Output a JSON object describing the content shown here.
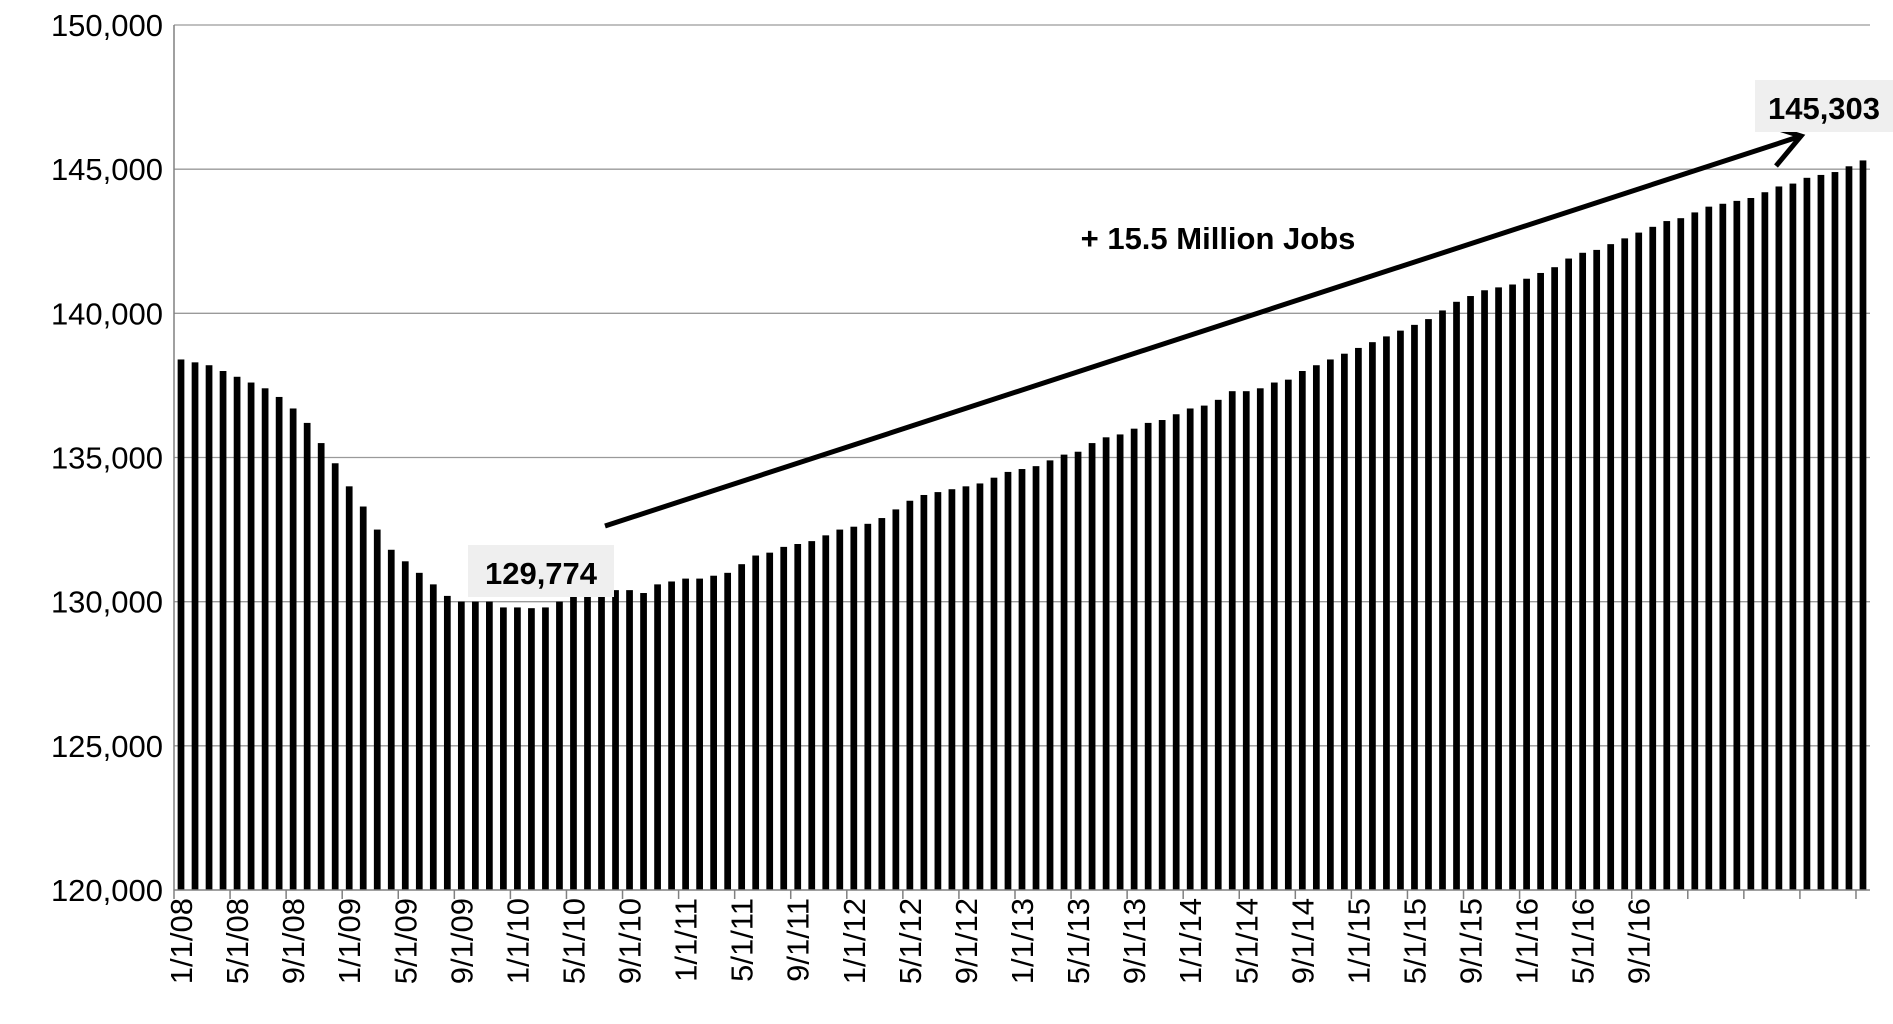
{
  "chart_data": {
    "type": "bar",
    "title": "",
    "xlabel": "",
    "ylabel": "",
    "ylim": [
      120000,
      150000
    ],
    "yticks": [
      "120,000",
      "125,000",
      "130,000",
      "135,000",
      "140,000",
      "145,000",
      "150,000"
    ],
    "xtick_labels": [
      "1/1/08",
      "5/1/08",
      "9/1/08",
      "1/1/09",
      "5/1/09",
      "9/1/09",
      "1/1/10",
      "5/1/10",
      "9/1/10",
      "1/1/11",
      "5/1/11",
      "9/1/11",
      "1/1/12",
      "5/1/12",
      "9/1/12",
      "1/1/13",
      "5/1/13",
      "9/1/13",
      "1/1/14",
      "5/1/14",
      "9/1/14",
      "1/1/15",
      "5/1/15",
      "9/1/15",
      "1/1/16",
      "5/1/16",
      "9/1/16"
    ],
    "grid": true,
    "legend": "none",
    "bar_color": "#000000",
    "values": [
      138400,
      138300,
      138200,
      138000,
      137800,
      137600,
      137400,
      137100,
      136700,
      136200,
      135500,
      134800,
      134000,
      133300,
      132500,
      131800,
      131400,
      131000,
      130600,
      130200,
      130000,
      130000,
      130000,
      129800,
      129800,
      129774,
      129800,
      130000,
      130200,
      130600,
      130500,
      130400,
      130400,
      130300,
      130600,
      130700,
      130800,
      130800,
      130900,
      131000,
      131300,
      131600,
      131700,
      131900,
      132000,
      132100,
      132300,
      132500,
      132600,
      132700,
      132900,
      133200,
      133500,
      133700,
      133800,
      133900,
      134000,
      134100,
      134300,
      134500,
      134600,
      134700,
      134900,
      135100,
      135200,
      135500,
      135700,
      135800,
      136000,
      136200,
      136300,
      136500,
      136700,
      136800,
      137000,
      137300,
      137300,
      137400,
      137600,
      137700,
      138000,
      138200,
      138400,
      138600,
      138800,
      139000,
      139200,
      139400,
      139600,
      139800,
      140100,
      140400,
      140600,
      140800,
      140900,
      141000,
      141200,
      141400,
      141600,
      141900,
      142100,
      142200,
      142400,
      142600,
      142800,
      143000,
      143200,
      143300,
      143500,
      143700,
      143800,
      143900,
      144000,
      144200,
      144400,
      144500,
      144700,
      144800,
      144900,
      145100,
      145303
    ],
    "annotations": {
      "min_value_label": "129,774",
      "max_value_label": "145,303",
      "change_label": "+ 15.5 Million Jobs"
    }
  }
}
